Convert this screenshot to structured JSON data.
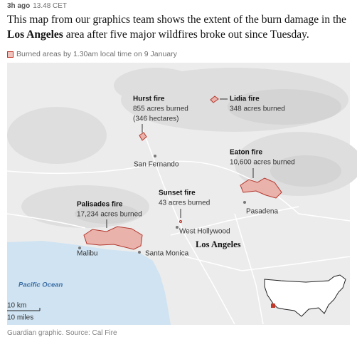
{
  "header": {
    "age": "3h ago",
    "time": "13.48 CET"
  },
  "intro": {
    "before": "This map from our graphics team shows the extent of the burn damage in the ",
    "bold": "Los Angeles",
    "after": " area after five major wildfires broke out since Tuesday."
  },
  "legend": {
    "label": "Burned areas by 1.30am local time on 9 January"
  },
  "fires": [
    {
      "name": "Hurst fire",
      "detail": "855 acres burned",
      "extra": "(346 hectares)"
    },
    {
      "name": "Lidia fire",
      "detail": "348 acres burned"
    },
    {
      "name": "Eaton fire",
      "detail": "10,600 acres burned"
    },
    {
      "name": "Sunset fire",
      "detail": "43 acres burned"
    },
    {
      "name": "Palisades fire",
      "detail": "17,234 acres burned"
    }
  ],
  "places": [
    "San Fernando",
    "Pasadena",
    "West Hollywood",
    "Santa Monica",
    "Malibu"
  ],
  "city": "Los Angeles",
  "ocean": "Pacific Ocean",
  "scale": {
    "km": "10 km",
    "miles": "10 miles"
  },
  "source": "Guardian graphic. Source: Cal Fire"
}
